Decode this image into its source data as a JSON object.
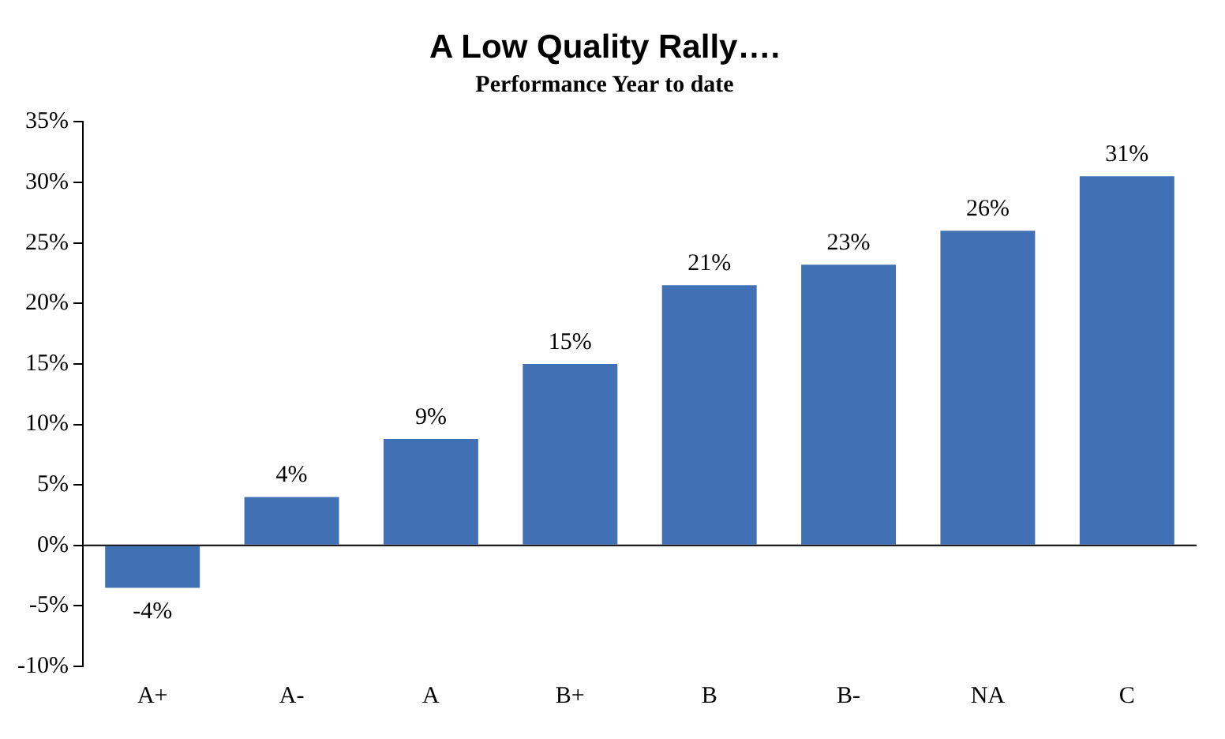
{
  "chart_data": {
    "type": "bar",
    "title": "A Low Quality Rally….",
    "subtitle": "Performance Year to date",
    "categories": [
      "A+",
      "A-",
      "A",
      "B+",
      "B",
      "B-",
      "NA",
      "C"
    ],
    "values": [
      -3.5,
      4,
      8.8,
      15,
      21.5,
      23.2,
      26,
      30.5
    ],
    "value_labels": [
      "-4%",
      "4%",
      "9%",
      "15%",
      "21%",
      "23%",
      "26%",
      "31%"
    ],
    "color": "#4170b5",
    "ylim": [
      -10,
      35
    ],
    "yticks": [
      {
        "value": -10,
        "label": "-10%"
      },
      {
        "value": -5,
        "label": "-5%"
      },
      {
        "value": 0,
        "label": "0%"
      },
      {
        "value": 5,
        "label": "5%"
      },
      {
        "value": 10,
        "label": "10%"
      },
      {
        "value": 15,
        "label": "15%"
      },
      {
        "value": 20,
        "label": "20%"
      },
      {
        "value": 25,
        "label": "25%"
      },
      {
        "value": 30,
        "label": "30%"
      },
      {
        "value": 35,
        "label": "35%"
      }
    ],
    "ref_lines": [
      {
        "axis": "y",
        "value": 0,
        "color": "#000000"
      }
    ],
    "grid": false,
    "legend": false
  }
}
